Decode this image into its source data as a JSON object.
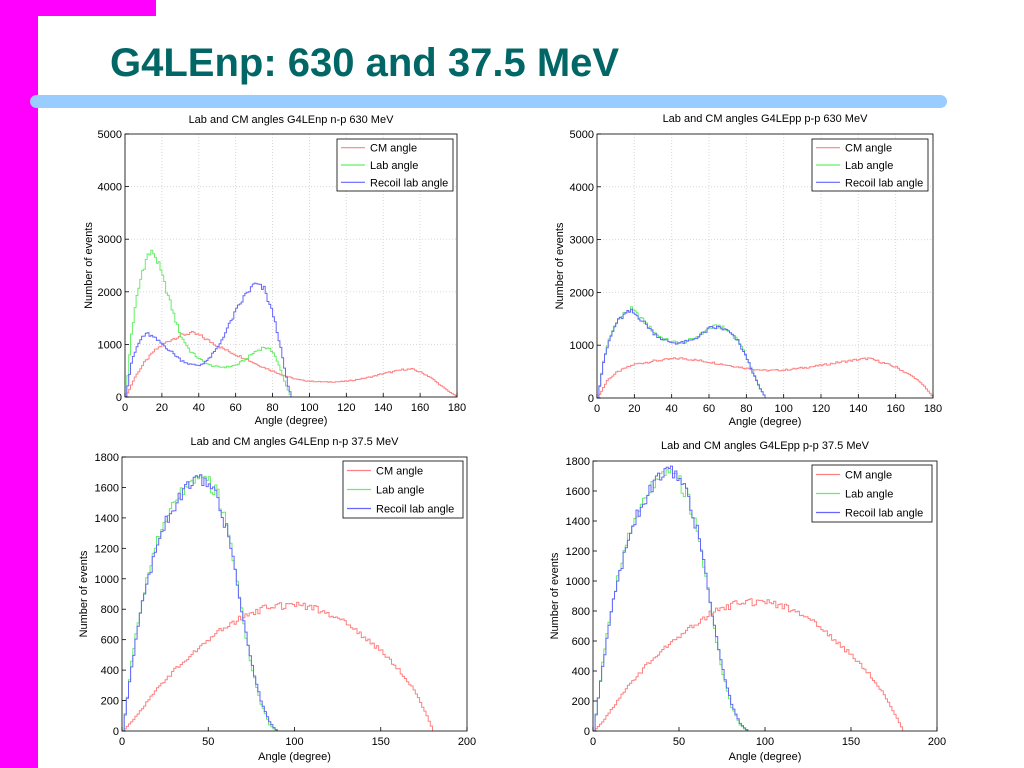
{
  "slide": {
    "title": "G4LEnp: 630 and 37.5 MeV",
    "colors": {
      "accent_bar": "#ff00ff",
      "title_text": "#006666",
      "rule": "#99ccff"
    }
  },
  "chart_data": [
    {
      "type": "line",
      "title": "Lab and CM angles G4LEnp n-p 630 MeV",
      "xlabel": "Angle (degree)",
      "ylabel": "Number of events",
      "xlim": [
        0,
        180
      ],
      "ylim": [
        0,
        5000
      ],
      "xticks": [
        0,
        20,
        40,
        60,
        80,
        100,
        120,
        140,
        160,
        180
      ],
      "yticks": [
        0,
        1000,
        2000,
        3000,
        4000,
        5000
      ],
      "grid": true,
      "legend": "top-right",
      "series": [
        {
          "name": "CM angle",
          "color": "#ff8080",
          "x": [
            0,
            5,
            10,
            15,
            20,
            25,
            30,
            35,
            40,
            45,
            50,
            55,
            60,
            65,
            70,
            75,
            80,
            85,
            90,
            95,
            100,
            105,
            110,
            115,
            120,
            125,
            130,
            135,
            140,
            145,
            150,
            155,
            160,
            165,
            170,
            175,
            180
          ],
          "y": [
            0,
            380,
            650,
            860,
            1000,
            1100,
            1170,
            1220,
            1170,
            1070,
            970,
            880,
            800,
            730,
            640,
            560,
            490,
            420,
            360,
            320,
            300,
            290,
            285,
            290,
            300,
            330,
            360,
            400,
            450,
            480,
            520,
            530,
            470,
            380,
            240,
            110,
            0
          ]
        },
        {
          "name": "Lab angle",
          "color": "#66ee66",
          "x": [
            0,
            3,
            6,
            9,
            12,
            15,
            18,
            21,
            24,
            27,
            30,
            35,
            40,
            45,
            50,
            55,
            60,
            65,
            70,
            75,
            80,
            83,
            86,
            89,
            90
          ],
          "y": [
            0,
            1200,
            1900,
            2400,
            2700,
            2750,
            2500,
            2150,
            1800,
            1450,
            1150,
            870,
            720,
            610,
            570,
            570,
            610,
            720,
            860,
            950,
            860,
            600,
            300,
            50,
            0
          ]
        },
        {
          "name": "Recoil lab angle",
          "color": "#6666ff",
          "x": [
            0,
            3,
            6,
            9,
            12,
            15,
            20,
            25,
            30,
            35,
            40,
            45,
            50,
            55,
            60,
            65,
            70,
            75,
            80,
            83,
            86,
            88,
            90
          ],
          "y": [
            0,
            650,
            950,
            1150,
            1200,
            1130,
            1000,
            850,
            700,
            620,
            600,
            720,
            950,
            1300,
            1650,
            1950,
            2150,
            2050,
            1550,
            1100,
            550,
            200,
            0
          ]
        }
      ]
    },
    {
      "type": "line",
      "title": "Lab and CM angles G4LEpp p-p 630 MeV",
      "xlabel": "Angle (degree)",
      "ylabel": "Number of events",
      "xlim": [
        0,
        180
      ],
      "ylim": [
        0,
        5000
      ],
      "xticks": [
        0,
        20,
        40,
        60,
        80,
        100,
        120,
        140,
        160,
        180
      ],
      "yticks": [
        0,
        1000,
        2000,
        3000,
        4000,
        5000
      ],
      "grid": true,
      "legend": "top-right",
      "series": [
        {
          "name": "CM angle",
          "color": "#ff8080",
          "x": [
            0,
            5,
            10,
            15,
            20,
            30,
            40,
            45,
            50,
            60,
            70,
            80,
            90,
            100,
            110,
            120,
            130,
            140,
            145,
            150,
            160,
            170,
            175,
            180
          ],
          "y": [
            0,
            330,
            480,
            570,
            640,
            700,
            740,
            750,
            730,
            680,
            620,
            560,
            520,
            530,
            570,
            620,
            680,
            730,
            750,
            700,
            580,
            380,
            220,
            0
          ]
        },
        {
          "name": "Lab angle",
          "color": "#66ee66",
          "x": [
            0,
            3,
            6,
            10,
            15,
            18,
            22,
            26,
            30,
            35,
            40,
            45,
            50,
            55,
            60,
            65,
            70,
            75,
            80,
            84,
            87,
            90
          ],
          "y": [
            0,
            700,
            1100,
            1450,
            1620,
            1680,
            1550,
            1400,
            1250,
            1120,
            1060,
            1050,
            1100,
            1200,
            1330,
            1360,
            1270,
            1100,
            750,
            420,
            180,
            0
          ]
        },
        {
          "name": "Recoil lab angle",
          "color": "#6666ff",
          "x": [
            0,
            3,
            6,
            10,
            15,
            18,
            22,
            26,
            30,
            35,
            40,
            45,
            50,
            55,
            60,
            65,
            70,
            75,
            80,
            84,
            87,
            90
          ],
          "y": [
            0,
            680,
            1080,
            1430,
            1600,
            1640,
            1530,
            1390,
            1230,
            1100,
            1050,
            1040,
            1090,
            1190,
            1320,
            1340,
            1260,
            1080,
            740,
            400,
            170,
            0
          ]
        }
      ]
    },
    {
      "type": "line",
      "title": "Lab and CM angles G4LEnp n-p 37.5 MeV",
      "xlabel": "Angle (degree)",
      "ylabel": "Number of events",
      "xlim": [
        0,
        200
      ],
      "ylim": [
        0,
        1800
      ],
      "xticks": [
        0,
        50,
        100,
        150,
        200
      ],
      "yticks": [
        0,
        200,
        400,
        600,
        800,
        1000,
        1200,
        1400,
        1600,
        1800
      ],
      "grid": false,
      "legend": "top-right",
      "series": [
        {
          "name": "CM angle",
          "color": "#ff8080",
          "x": [
            0,
            5,
            10,
            20,
            30,
            40,
            50,
            60,
            70,
            80,
            90,
            100,
            110,
            120,
            130,
            140,
            150,
            160,
            170,
            175,
            180
          ],
          "y": [
            0,
            60,
            130,
            280,
            400,
            500,
            600,
            690,
            750,
            800,
            820,
            830,
            810,
            760,
            700,
            620,
            520,
            400,
            250,
            130,
            0
          ]
        },
        {
          "name": "Lab angle",
          "color": "#66ee66",
          "x": [
            0,
            5,
            10,
            15,
            20,
            25,
            30,
            35,
            40,
            45,
            50,
            55,
            60,
            65,
            70,
            75,
            80,
            85,
            88,
            90
          ],
          "y": [
            0,
            450,
            800,
            1050,
            1250,
            1400,
            1520,
            1590,
            1620,
            1650,
            1630,
            1550,
            1350,
            1050,
            700,
            400,
            180,
            40,
            10,
            0
          ]
        },
        {
          "name": "Recoil lab angle",
          "color": "#6666ff",
          "x": [
            0,
            5,
            10,
            15,
            20,
            25,
            30,
            35,
            40,
            45,
            50,
            55,
            60,
            65,
            70,
            75,
            80,
            85,
            88,
            90
          ],
          "y": [
            0,
            420,
            780,
            1020,
            1220,
            1380,
            1490,
            1570,
            1620,
            1640,
            1610,
            1520,
            1330,
            1050,
            720,
            420,
            200,
            60,
            15,
            0
          ]
        }
      ]
    },
    {
      "type": "line",
      "title": "Lab and CM angles G4LEpp p-p 37.5 MeV",
      "xlabel": "Angle (degree)",
      "ylabel": "Number of events",
      "xlim": [
        0,
        200
      ],
      "ylim": [
        0,
        1800
      ],
      "xticks": [
        0,
        50,
        100,
        150,
        200
      ],
      "yticks": [
        0,
        200,
        400,
        600,
        800,
        1000,
        1200,
        1400,
        1600,
        1800
      ],
      "grid": false,
      "legend": "top-right",
      "series": [
        {
          "name": "CM angle",
          "color": "#ff8080",
          "x": [
            0,
            5,
            10,
            20,
            30,
            40,
            50,
            60,
            70,
            80,
            90,
            100,
            110,
            120,
            130,
            140,
            150,
            160,
            170,
            175,
            180
          ],
          "y": [
            0,
            60,
            140,
            300,
            430,
            540,
            630,
            720,
            800,
            840,
            860,
            860,
            830,
            780,
            700,
            610,
            500,
            380,
            220,
            110,
            0
          ]
        },
        {
          "name": "Lab angle",
          "color": "#66ee66",
          "x": [
            0,
            5,
            10,
            15,
            20,
            25,
            30,
            35,
            40,
            45,
            50,
            55,
            60,
            65,
            70,
            75,
            80,
            85,
            88,
            90
          ],
          "y": [
            0,
            450,
            820,
            1080,
            1290,
            1450,
            1570,
            1660,
            1700,
            1710,
            1660,
            1540,
            1330,
            1020,
            680,
            380,
            160,
            40,
            10,
            0
          ]
        },
        {
          "name": "Recoil lab angle",
          "color": "#6666ff",
          "x": [
            0,
            5,
            10,
            15,
            20,
            25,
            30,
            35,
            40,
            45,
            50,
            55,
            60,
            65,
            70,
            75,
            80,
            85,
            88,
            90
          ],
          "y": [
            0,
            430,
            800,
            1060,
            1270,
            1440,
            1560,
            1650,
            1700,
            1720,
            1670,
            1550,
            1340,
            1040,
            700,
            400,
            180,
            50,
            15,
            0
          ]
        }
      ]
    }
  ]
}
